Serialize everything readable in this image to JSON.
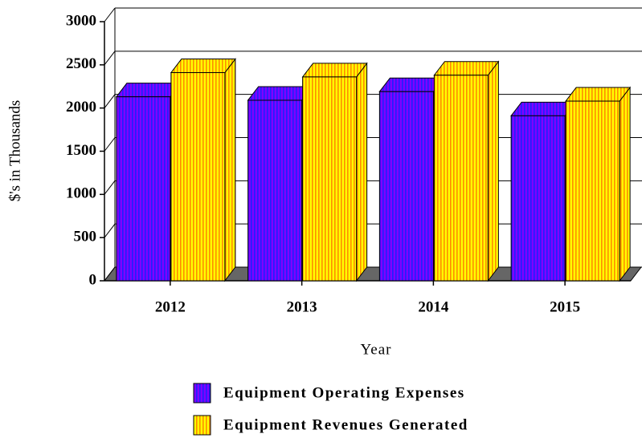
{
  "chart_data": {
    "type": "bar3d",
    "y_label": "$'s in Thousands",
    "x_label": "Year",
    "categories": [
      "2012",
      "2013",
      "2014",
      "2015"
    ],
    "series": [
      {
        "name": "Equipment Operating Expenses",
        "color": "#8000ff",
        "values": [
          2130,
          2090,
          2190,
          1910
        ]
      },
      {
        "name": "Equipment Revenues Generated",
        "color": "#ffff00",
        "values": [
          2410,
          2360,
          2380,
          2080
        ]
      }
    ],
    "ylim": [
      0,
      3000
    ],
    "yticks": [
      0,
      500,
      1000,
      1500,
      2000,
      2500,
      3000
    ],
    "grid": true
  }
}
